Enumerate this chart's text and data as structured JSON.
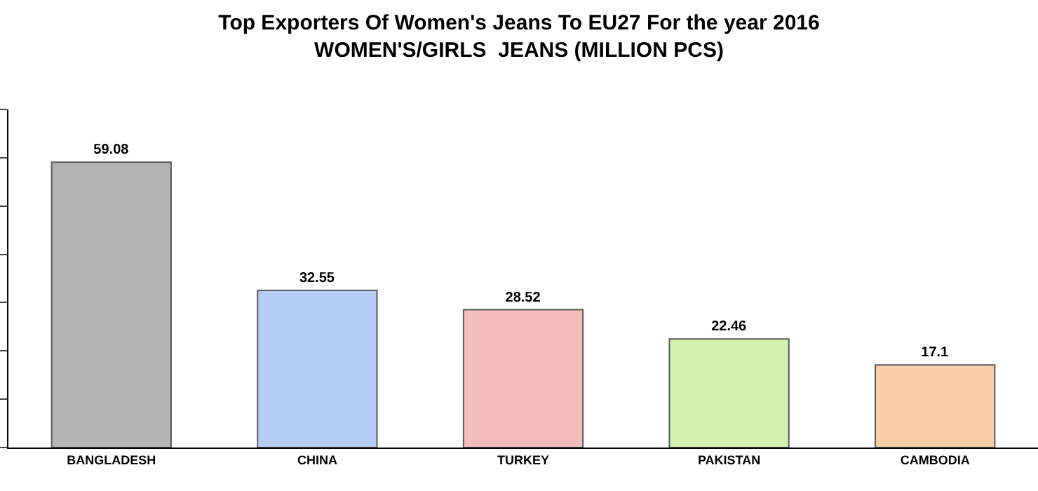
{
  "chart_data": {
    "type": "bar",
    "title": "Top Exporters Of Women's Jeans To EU27 For the year 2016\nWOMEN'S/GIRLS  JEANS (MILLION PCS)",
    "categories": [
      "BANGLADESH",
      "CHINA",
      "TURKEY",
      "PAKISTAN",
      "CAMBODIA"
    ],
    "values": [
      59.08,
      32.55,
      28.52,
      22.46,
      17.1
    ],
    "colors": [
      "#b4b4b4",
      "#b3cdf5",
      "#f5bcbc",
      "#d2f2b0",
      "#fbcda6"
    ],
    "ylim": [
      0,
      70
    ],
    "yticks": [
      {
        "value": 0,
        "label": null
      },
      {
        "value": 10,
        "label": null
      },
      {
        "value": 20,
        "label": null
      },
      {
        "value": 30,
        "label": null
      },
      {
        "value": 40,
        "label": null
      },
      {
        "value": 50,
        "label": null
      },
      {
        "value": 60,
        "label": null
      },
      {
        "value": 70,
        "label": null
      }
    ],
    "tick_labels": "x",
    "data_labels": true
  }
}
